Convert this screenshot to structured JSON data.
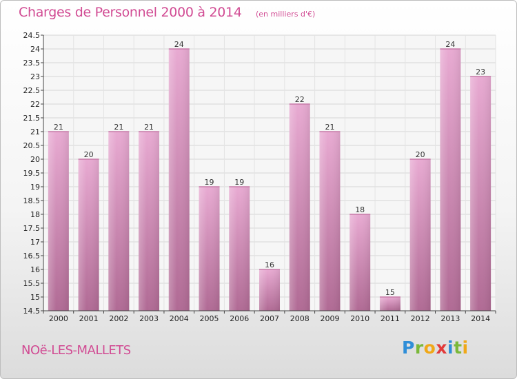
{
  "chart_data": {
    "type": "bar",
    "title": "Charges de Personnel 2000 à 2014",
    "subtitle": "(en milliers d'€)",
    "categories": [
      "2000",
      "2001",
      "2002",
      "2003",
      "2004",
      "2005",
      "2006",
      "2007",
      "2008",
      "2009",
      "2010",
      "2011",
      "2012",
      "2013",
      "2014"
    ],
    "values": [
      21,
      20,
      21,
      21,
      24,
      19,
      19,
      16,
      22,
      21,
      18,
      15,
      20,
      24,
      23
    ],
    "ylim": [
      14.5,
      24.5
    ],
    "yticks": [
      "14.5",
      "15",
      "15.5",
      "16",
      "16.5",
      "17",
      "17.5",
      "18",
      "18.5",
      "19",
      "19.5",
      "20",
      "20.5",
      "21",
      "21.5",
      "22",
      "22.5",
      "23",
      "23.5",
      "24",
      "24.5"
    ],
    "grid": true,
    "bar_color": "#e3a3cb",
    "xlabel": "",
    "ylabel": ""
  },
  "footer": {
    "place_name": "NOë-LES-MALLETS",
    "brand": "Proxiti"
  }
}
